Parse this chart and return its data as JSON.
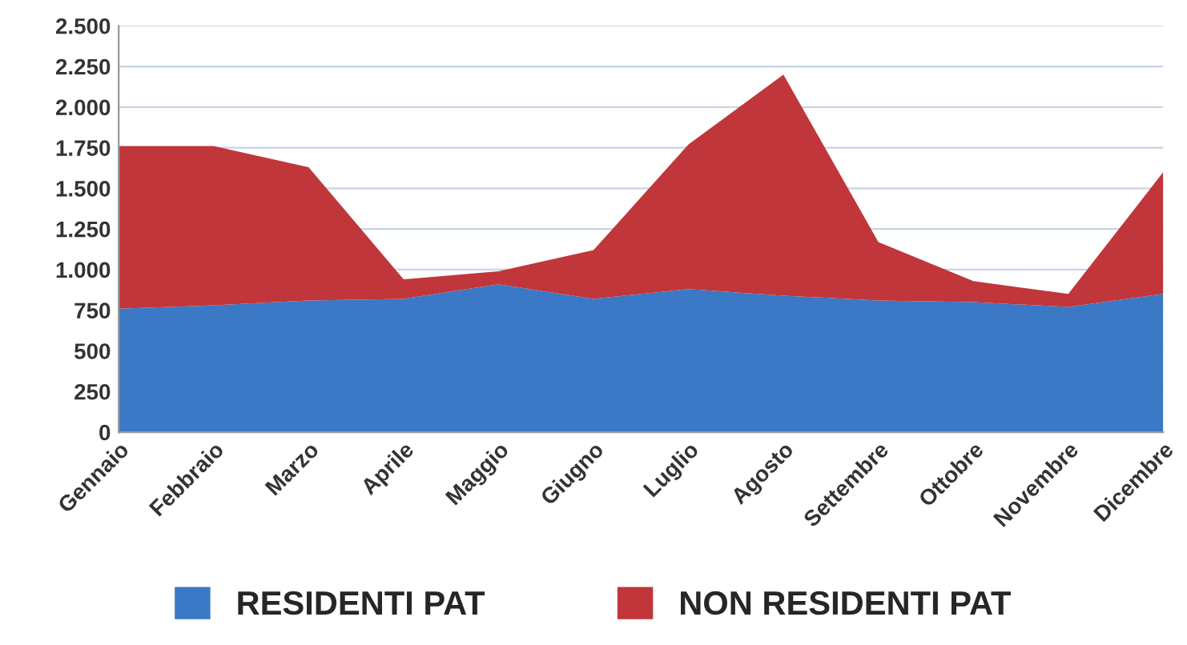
{
  "chart_data": {
    "type": "area",
    "stacked": true,
    "categories": [
      "Gennaio",
      "Febbraio",
      "Marzo",
      "Aprile",
      "Maggio",
      "Giugno",
      "Luglio",
      "Agosto",
      "Settembre",
      "Ottobre",
      "Novembre",
      "Dicembre"
    ],
    "series": [
      {
        "name": "RESIDENTI PAT",
        "color": "#3b78c6",
        "values": [
          760,
          780,
          810,
          820,
          910,
          820,
          880,
          840,
          810,
          800,
          770,
          850
        ]
      },
      {
        "name": "NON RESIDENTI PAT",
        "color": "#c0363a",
        "values": [
          1000,
          980,
          820,
          120,
          80,
          300,
          890,
          1360,
          360,
          130,
          80,
          750
        ]
      }
    ],
    "ylim": [
      0,
      2500
    ],
    "yticks": [
      {
        "value": 0,
        "label": "0"
      },
      {
        "value": 250,
        "label": "250"
      },
      {
        "value": 500,
        "label": "500"
      },
      {
        "value": 750,
        "label": "750"
      },
      {
        "value": 1000,
        "label": "1.000"
      },
      {
        "value": 1250,
        "label": "1.250"
      },
      {
        "value": 1500,
        "label": "1.500"
      },
      {
        "value": 1750,
        "label": "1.750"
      },
      {
        "value": 2000,
        "label": "2.000"
      },
      {
        "value": 2250,
        "label": "2.250"
      },
      {
        "value": 2500,
        "label": "2.500"
      }
    ],
    "grid": "y",
    "legend": "bottom"
  }
}
